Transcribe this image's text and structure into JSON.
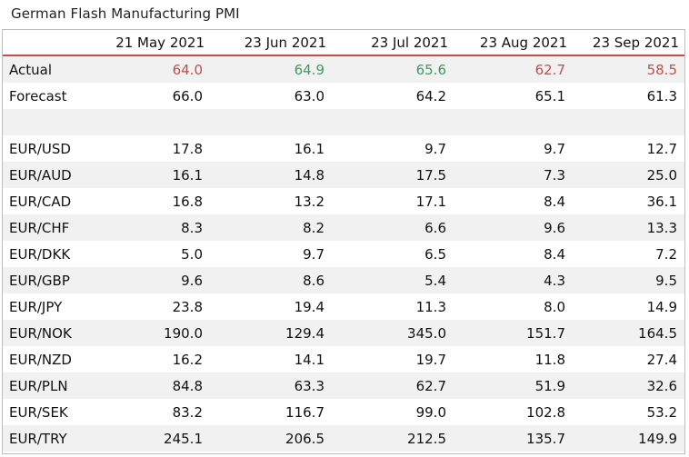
{
  "title": "German Flash Manufacturing PMI",
  "colors": {
    "beat": "#3d9b61",
    "miss": "#c0504d",
    "header_rule": "#c0504d",
    "shade": "#f1f1f1"
  },
  "columns": [
    "21 May 2021",
    "23 Jun 2021",
    "23 Jul 2021",
    "23 Aug 2021",
    "23 Sep 2021"
  ],
  "actual": {
    "label": "Actual",
    "values": [
      "64.0",
      "64.9",
      "65.6",
      "62.7",
      "58.5"
    ],
    "status": [
      "miss",
      "beat",
      "beat",
      "miss",
      "miss"
    ]
  },
  "forecast": {
    "label": "Forecast",
    "values": [
      "66.0",
      "63.0",
      "64.2",
      "65.1",
      "61.3"
    ]
  },
  "pairs": [
    {
      "label": "EUR/USD",
      "values": [
        "17.8",
        "16.1",
        "9.7",
        "9.7",
        "12.7"
      ]
    },
    {
      "label": "EUR/AUD",
      "values": [
        "16.1",
        "14.8",
        "17.5",
        "7.3",
        "25.0"
      ]
    },
    {
      "label": "EUR/CAD",
      "values": [
        "16.8",
        "13.2",
        "17.1",
        "8.4",
        "36.1"
      ]
    },
    {
      "label": "EUR/CHF",
      "values": [
        "8.3",
        "8.2",
        "6.6",
        "9.6",
        "13.3"
      ]
    },
    {
      "label": "EUR/DKK",
      "values": [
        "5.0",
        "9.7",
        "6.5",
        "8.4",
        "7.2"
      ]
    },
    {
      "label": "EUR/GBP",
      "values": [
        "9.6",
        "8.6",
        "5.4",
        "4.3",
        "9.5"
      ]
    },
    {
      "label": "EUR/JPY",
      "values": [
        "23.8",
        "19.4",
        "11.3",
        "8.0",
        "14.9"
      ]
    },
    {
      "label": "EUR/NOK",
      "values": [
        "190.0",
        "129.4",
        "345.0",
        "151.7",
        "164.5"
      ]
    },
    {
      "label": "EUR/NZD",
      "values": [
        "16.2",
        "14.1",
        "19.7",
        "11.8",
        "27.4"
      ]
    },
    {
      "label": "EUR/PLN",
      "values": [
        "84.8",
        "63.3",
        "62.7",
        "51.9",
        "32.6"
      ]
    },
    {
      "label": "EUR/SEK",
      "values": [
        "83.2",
        "116.7",
        "99.0",
        "102.8",
        "53.2"
      ]
    },
    {
      "label": "EUR/TRY",
      "values": [
        "245.1",
        "206.5",
        "212.5",
        "135.7",
        "149.9"
      ]
    }
  ]
}
